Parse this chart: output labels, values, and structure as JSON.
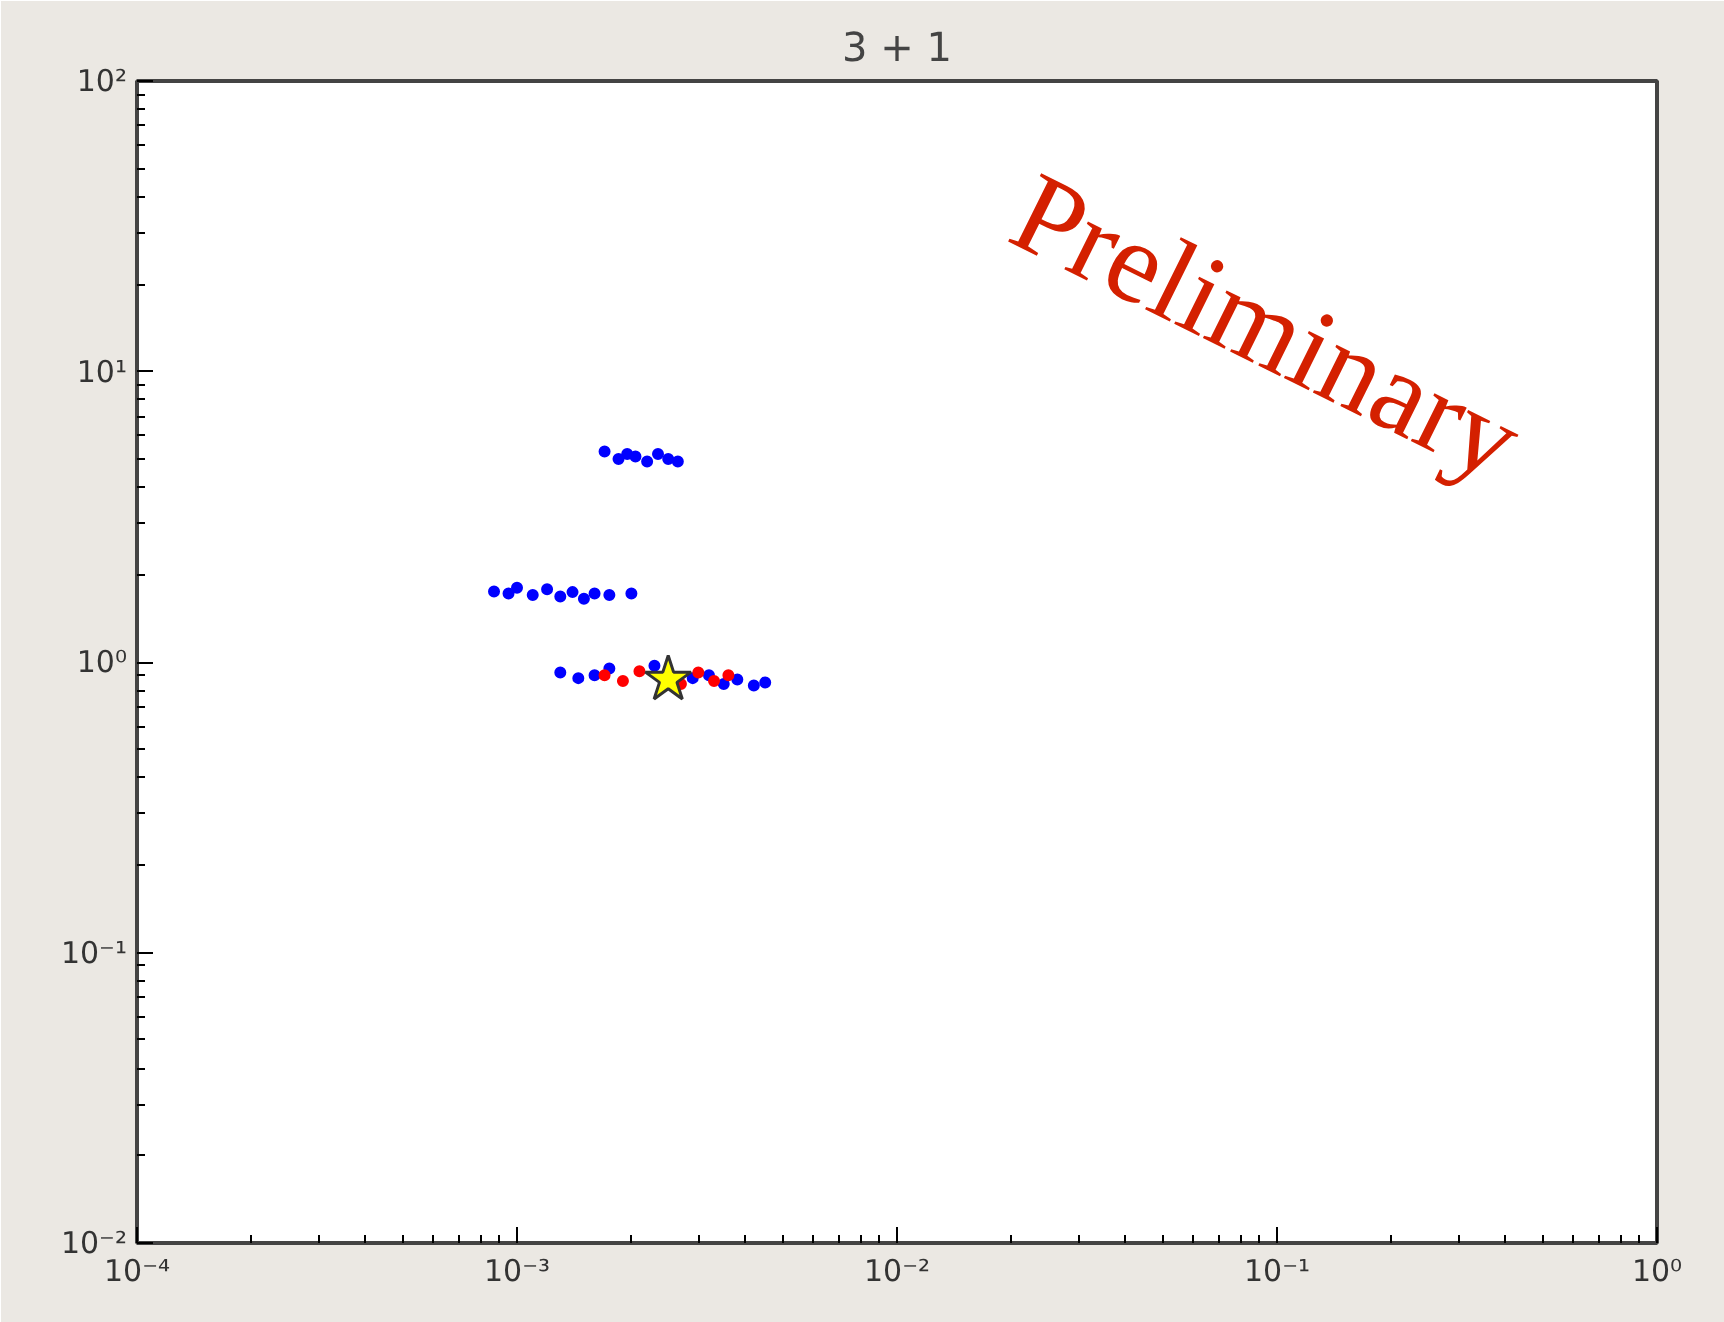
{
  "chart_data": {
    "type": "scatter",
    "title": "3 + 1",
    "log": "xy",
    "grid": false,
    "xlim": [
      0.0001,
      1
    ],
    "ylim": [
      0.01,
      100
    ],
    "xticks": [
      {
        "value": 0.0001,
        "label": "10⁻⁴"
      },
      {
        "value": 0.001,
        "label": "10⁻³"
      },
      {
        "value": 0.01,
        "label": "10⁻²"
      },
      {
        "value": 0.1,
        "label": "10⁻¹"
      },
      {
        "value": 1,
        "label": "10⁰"
      }
    ],
    "yticks": [
      {
        "value": 0.01,
        "label": "10⁻²"
      },
      {
        "value": 0.1,
        "label": "10⁻¹"
      },
      {
        "value": 1,
        "label": "10⁰"
      },
      {
        "value": 10,
        "label": "10¹"
      },
      {
        "value": 100,
        "label": "10²"
      }
    ],
    "series": [
      {
        "color": "#0000ff",
        "marker": "circle",
        "x": [
          0.0017,
          0.00185,
          0.00195,
          0.00205,
          0.0022,
          0.00235,
          0.0025,
          0.00265,
          0.00087,
          0.00095,
          0.001,
          0.0011,
          0.0012,
          0.0013,
          0.0014,
          0.0015,
          0.0016,
          0.00175,
          0.002,
          0.0013,
          0.00145,
          0.0016,
          0.00175,
          0.0023,
          0.0029,
          0.0032,
          0.0035,
          0.0038,
          0.0042,
          0.0045
        ],
        "values": [
          5.3,
          5.0,
          5.2,
          5.1,
          4.9,
          5.2,
          5.0,
          4.9,
          1.75,
          1.72,
          1.8,
          1.7,
          1.78,
          1.68,
          1.74,
          1.65,
          1.72,
          1.7,
          1.72,
          0.92,
          0.88,
          0.9,
          0.95,
          0.97,
          0.88,
          0.9,
          0.84,
          0.87,
          0.83,
          0.85
        ]
      },
      {
        "color": "#ff0000",
        "marker": "circle",
        "x": [
          0.0017,
          0.0019,
          0.0021,
          0.0027,
          0.003,
          0.0033,
          0.0036
        ],
        "values": [
          0.9,
          0.86,
          0.93,
          0.84,
          0.92,
          0.86,
          0.9
        ]
      },
      {
        "color": "#ffff00",
        "marker": "star",
        "x": [
          0.0025
        ],
        "values": [
          0.87
        ]
      }
    ],
    "annotations": [
      "Preliminary"
    ]
  }
}
